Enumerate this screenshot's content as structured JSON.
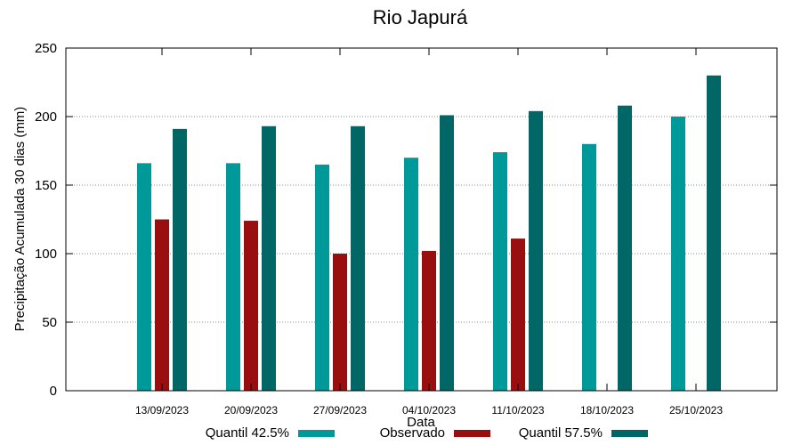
{
  "chart_data": {
    "type": "bar",
    "title": "Rio Japurá",
    "xlabel": "Data",
    "ylabel": "Precipitação Acumulada 30 dias (mm)",
    "ylim": [
      0,
      250
    ],
    "yticks": [
      0,
      50,
      100,
      150,
      200,
      250
    ],
    "grid": "horizontal-dotted",
    "legend_position": "bottom",
    "categories": [
      "13/09/2023",
      "20/09/2023",
      "27/09/2023",
      "04/10/2023",
      "11/10/2023",
      "18/10/2023",
      "25/10/2023"
    ],
    "series": [
      {
        "name": "Quantil 42.5%",
        "color": "#009999",
        "values": [
          166,
          166,
          165,
          170,
          174,
          180,
          200
        ]
      },
      {
        "name": "Observado",
        "color": "#990f0f",
        "values": [
          125,
          124,
          100,
          102,
          111,
          null,
          null
        ]
      },
      {
        "name": "Quantil 57.5%",
        "color": "#006666",
        "values": [
          191,
          193,
          193,
          201,
          204,
          208,
          230
        ]
      }
    ]
  }
}
